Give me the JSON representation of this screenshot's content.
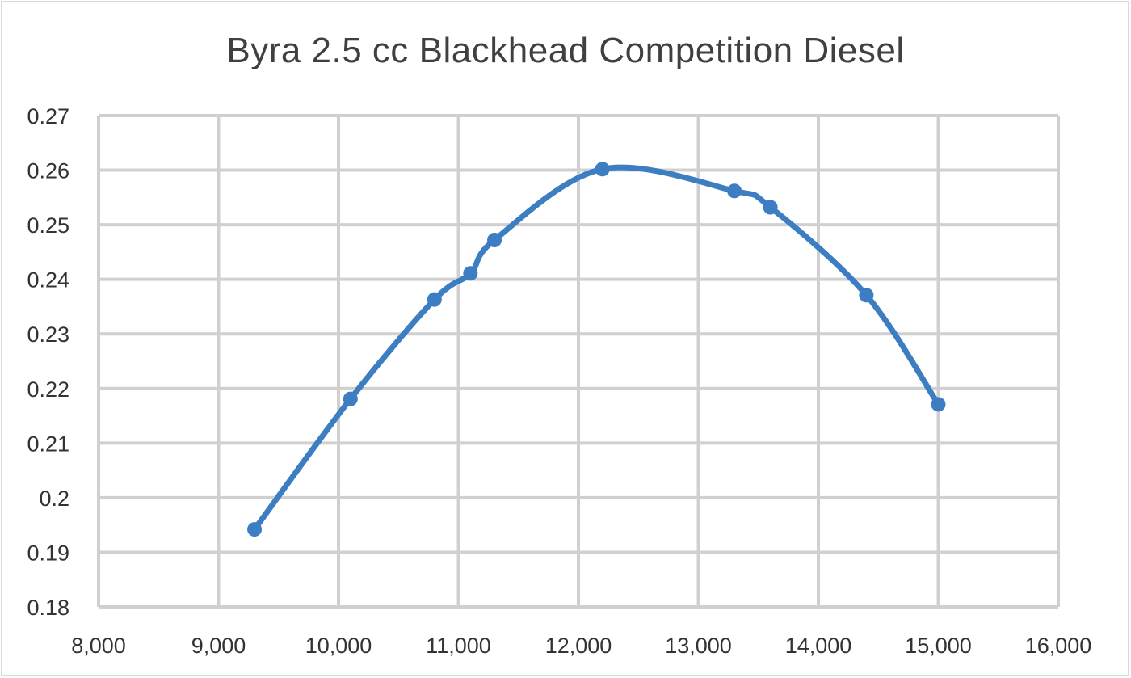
{
  "chart_data": {
    "type": "line",
    "title": "Byra 2.5 cc Blackhead Competition Diesel",
    "xlabel": "",
    "ylabel": "",
    "xlim": [
      8000,
      16000
    ],
    "ylim": [
      0.18,
      0.27
    ],
    "x_ticks": [
      "8,000",
      "9,000",
      "10,000",
      "11,000",
      "12,000",
      "13,000",
      "14,000",
      "15,000",
      "16,000"
    ],
    "y_ticks": [
      "0.18",
      "0.19",
      "0.2",
      "0.21",
      "0.22",
      "0.23",
      "0.24",
      "0.25",
      "0.26",
      "0.27"
    ],
    "grid": true,
    "legend": "none",
    "series": [
      {
        "color": "#3d7ec3",
        "x": [
          9300,
          10100,
          10800,
          11100,
          11300,
          12200,
          13300,
          13600,
          14400,
          15000
        ],
        "y": [
          0.1942,
          0.2181,
          0.2363,
          0.2411,
          0.2472,
          0.2602,
          0.2562,
          0.2532,
          0.2371,
          0.2171
        ]
      }
    ]
  }
}
